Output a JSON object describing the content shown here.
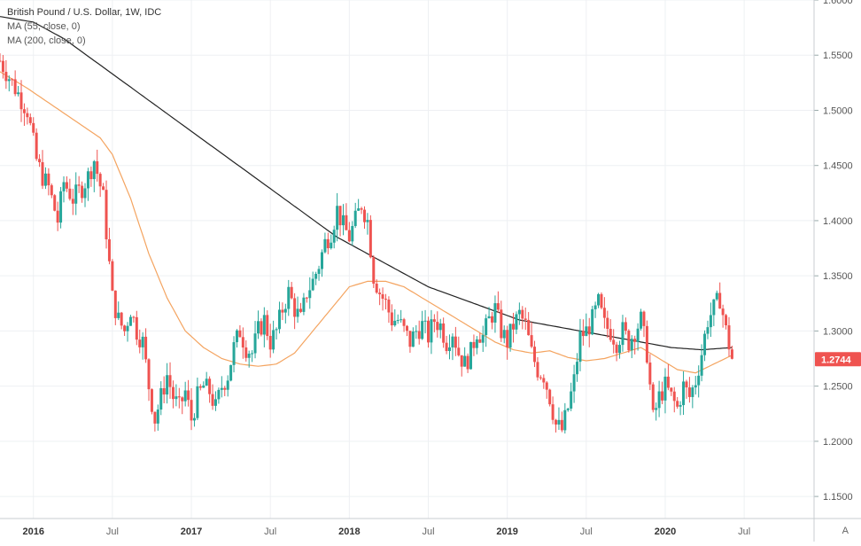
{
  "legend": {
    "title": "British Pound / U.S. Dollar, 1W, IDC",
    "ma1": "MA (55, close, 0)",
    "ma2": "MA (200, close, 0)"
  },
  "last_price_label": "1.2744",
  "auto_label": "A",
  "colors": {
    "up": "#26a69a",
    "down": "#ef5350",
    "ma55": "#f4a460",
    "ma200": "#222222",
    "last_price_bg": "#ef5350",
    "grid": "#eef0f3"
  },
  "chart_data": {
    "type": "candlestick",
    "title": "British Pound / U.S. Dollar, 1W, IDC",
    "ylim": [
      1.13,
      1.6
    ],
    "y_ticks": [
      "1.6000",
      "1.5500",
      "1.5000",
      "1.4500",
      "1.4000",
      "1.3500",
      "1.3000",
      "1.2500",
      "1.2000",
      "1.1500"
    ],
    "y_tick_values": [
      1.6,
      1.55,
      1.5,
      1.45,
      1.4,
      1.35,
      1.3,
      1.25,
      1.2,
      1.15
    ],
    "x_ticks": [
      {
        "label": "2016",
        "t": 0.0
      },
      {
        "label": "Jul",
        "t": 26
      },
      {
        "label": "2017",
        "t": 52
      },
      {
        "label": "Jul",
        "t": 78
      },
      {
        "label": "2018",
        "t": 104
      },
      {
        "label": "Jul",
        "t": 130
      },
      {
        "label": "2019",
        "t": 156
      },
      {
        "label": "Jul",
        "t": 182
      },
      {
        "label": "2020",
        "t": 208
      },
      {
        "label": "Jul",
        "t": 234
      }
    ],
    "t_range": [
      -11,
      257
    ],
    "closes_keypoints": [
      [
        -11,
        1.545
      ],
      [
        -8,
        1.53
      ],
      [
        -5,
        1.515
      ],
      [
        -2,
        1.5
      ],
      [
        1,
        1.455
      ],
      [
        3,
        1.44
      ],
      [
        5,
        1.43
      ],
      [
        8,
        1.4
      ],
      [
        10,
        1.435
      ],
      [
        13,
        1.42
      ],
      [
        16,
        1.43
      ],
      [
        18,
        1.44
      ],
      [
        20,
        1.455
      ],
      [
        23,
        1.42
      ],
      [
        25,
        1.36
      ],
      [
        26,
        1.33
      ],
      [
        28,
        1.31
      ],
      [
        30,
        1.3
      ],
      [
        32,
        1.32
      ],
      [
        34,
        1.3
      ],
      [
        36,
        1.29
      ],
      [
        38,
        1.25
      ],
      [
        40,
        1.22
      ],
      [
        42,
        1.24
      ],
      [
        44,
        1.26
      ],
      [
        46,
        1.24
      ],
      [
        48,
        1.23
      ],
      [
        50,
        1.245
      ],
      [
        52,
        1.22
      ],
      [
        54,
        1.24
      ],
      [
        56,
        1.25
      ],
      [
        58,
        1.245
      ],
      [
        60,
        1.23
      ],
      [
        62,
        1.25
      ],
      [
        64,
        1.26
      ],
      [
        66,
        1.285
      ],
      [
        68,
        1.3
      ],
      [
        70,
        1.285
      ],
      [
        72,
        1.28
      ],
      [
        74,
        1.3
      ],
      [
        76,
        1.31
      ],
      [
        78,
        1.29
      ],
      [
        80,
        1.3
      ],
      [
        82,
        1.32
      ],
      [
        84,
        1.335
      ],
      [
        86,
        1.32
      ],
      [
        88,
        1.31
      ],
      [
        90,
        1.335
      ],
      [
        92,
        1.345
      ],
      [
        94,
        1.36
      ],
      [
        96,
        1.38
      ],
      [
        98,
        1.39
      ],
      [
        100,
        1.41
      ],
      [
        102,
        1.395
      ],
      [
        104,
        1.385
      ],
      [
        106,
        1.4
      ],
      [
        108,
        1.415
      ],
      [
        110,
        1.4
      ],
      [
        112,
        1.35
      ],
      [
        114,
        1.335
      ],
      [
        116,
        1.325
      ],
      [
        118,
        1.31
      ],
      [
        120,
        1.31
      ],
      [
        122,
        1.3
      ],
      [
        124,
        1.29
      ],
      [
        126,
        1.3
      ],
      [
        128,
        1.305
      ],
      [
        130,
        1.295
      ],
      [
        132,
        1.31
      ],
      [
        134,
        1.305
      ],
      [
        136,
        1.29
      ],
      [
        138,
        1.3
      ],
      [
        140,
        1.28
      ],
      [
        142,
        1.27
      ],
      [
        144,
        1.28
      ],
      [
        146,
        1.3
      ],
      [
        148,
        1.295
      ],
      [
        150,
        1.31
      ],
      [
        152,
        1.32
      ],
      [
        154,
        1.3
      ],
      [
        156,
        1.29
      ],
      [
        158,
        1.305
      ],
      [
        160,
        1.315
      ],
      [
        162,
        1.305
      ],
      [
        164,
        1.28
      ],
      [
        166,
        1.265
      ],
      [
        168,
        1.26
      ],
      [
        170,
        1.24
      ],
      [
        172,
        1.215
      ],
      [
        174,
        1.21
      ],
      [
        176,
        1.23
      ],
      [
        178,
        1.255
      ],
      [
        180,
        1.295
      ],
      [
        182,
        1.3
      ],
      [
        184,
        1.31
      ],
      [
        186,
        1.325
      ],
      [
        188,
        1.305
      ],
      [
        190,
        1.3
      ],
      [
        192,
        1.29
      ],
      [
        194,
        1.3
      ],
      [
        196,
        1.29
      ],
      [
        198,
        1.3
      ],
      [
        200,
        1.31
      ],
      [
        202,
        1.28
      ],
      [
        204,
        1.22
      ],
      [
        206,
        1.24
      ],
      [
        208,
        1.25
      ],
      [
        210,
        1.24
      ],
      [
        212,
        1.23
      ],
      [
        214,
        1.25
      ],
      [
        216,
        1.24
      ],
      [
        218,
        1.255
      ],
      [
        220,
        1.28
      ],
      [
        222,
        1.31
      ],
      [
        224,
        1.32
      ],
      [
        226,
        1.33
      ],
      [
        228,
        1.3
      ],
      [
        230,
        1.275
      ]
    ],
    "ma55_keypoints": [
      [
        -11,
        1.535
      ],
      [
        -2,
        1.52
      ],
      [
        6,
        1.505
      ],
      [
        14,
        1.49
      ],
      [
        22,
        1.475
      ],
      [
        26,
        1.46
      ],
      [
        32,
        1.42
      ],
      [
        38,
        1.37
      ],
      [
        44,
        1.33
      ],
      [
        50,
        1.3
      ],
      [
        56,
        1.285
      ],
      [
        62,
        1.275
      ],
      [
        68,
        1.27
      ],
      [
        74,
        1.268
      ],
      [
        80,
        1.27
      ],
      [
        86,
        1.28
      ],
      [
        92,
        1.3
      ],
      [
        98,
        1.32
      ],
      [
        104,
        1.34
      ],
      [
        110,
        1.345
      ],
      [
        116,
        1.345
      ],
      [
        122,
        1.34
      ],
      [
        128,
        1.33
      ],
      [
        134,
        1.32
      ],
      [
        140,
        1.31
      ],
      [
        146,
        1.3
      ],
      [
        152,
        1.29
      ],
      [
        158,
        1.283
      ],
      [
        164,
        1.28
      ],
      [
        170,
        1.282
      ],
      [
        176,
        1.276
      ],
      [
        182,
        1.273
      ],
      [
        188,
        1.275
      ],
      [
        194,
        1.28
      ],
      [
        200,
        1.285
      ],
      [
        206,
        1.275
      ],
      [
        212,
        1.265
      ],
      [
        218,
        1.262
      ],
      [
        224,
        1.27
      ],
      [
        230,
        1.278
      ]
    ],
    "ma200_keypoints": [
      [
        -11,
        1.585
      ],
      [
        0,
        1.58
      ],
      [
        10,
        1.565
      ],
      [
        20,
        1.545
      ],
      [
        30,
        1.525
      ],
      [
        40,
        1.505
      ],
      [
        50,
        1.485
      ],
      [
        60,
        1.465
      ],
      [
        70,
        1.445
      ],
      [
        80,
        1.425
      ],
      [
        90,
        1.405
      ],
      [
        100,
        1.385
      ],
      [
        110,
        1.37
      ],
      [
        120,
        1.355
      ],
      [
        130,
        1.34
      ],
      [
        140,
        1.33
      ],
      [
        150,
        1.32
      ],
      [
        160,
        1.31
      ],
      [
        170,
        1.305
      ],
      [
        180,
        1.3
      ],
      [
        190,
        1.295
      ],
      [
        200,
        1.29
      ],
      [
        210,
        1.285
      ],
      [
        220,
        1.283
      ],
      [
        230,
        1.285
      ]
    ],
    "last_price": 1.2744
  }
}
